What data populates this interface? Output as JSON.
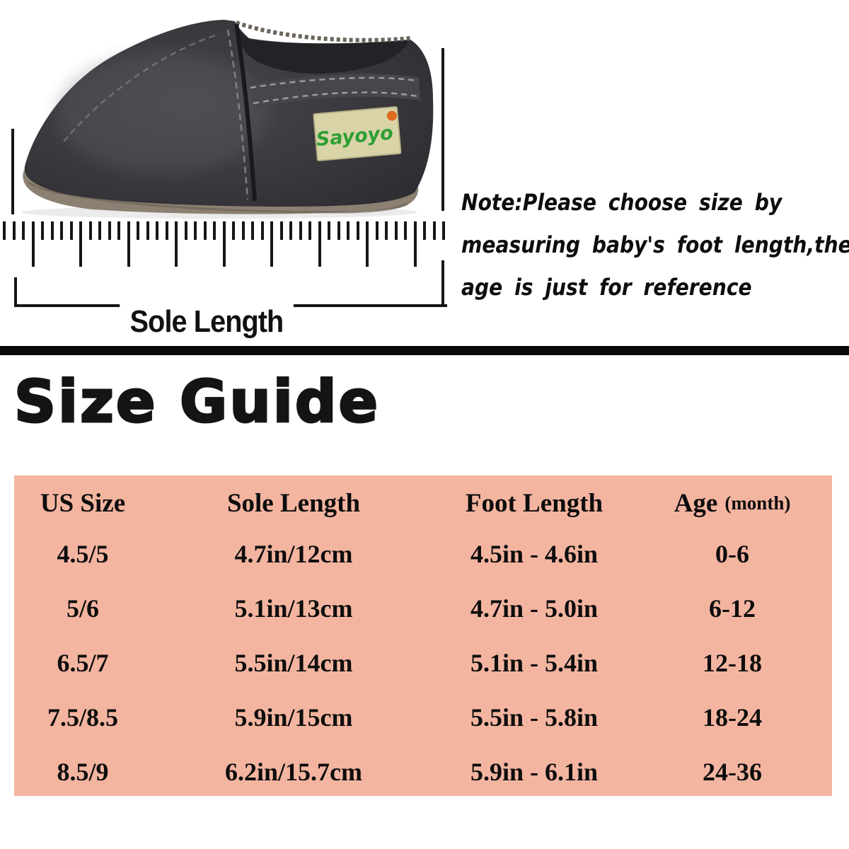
{
  "hero": {
    "brand_tag": "Sayoyo",
    "sole_length_label": "Sole Length",
    "note_line1": "Note:Please choose size by",
    "note_line2": "measuring baby's foot length,the",
    "note_line3": "age is just for reference"
  },
  "size_guide": {
    "title": "Size Guide",
    "headers": [
      {
        "label": "US Size"
      },
      {
        "label": "Sole Length"
      },
      {
        "label": "Foot Length"
      },
      {
        "label": "Age",
        "sub": "(month)"
      }
    ],
    "rows": [
      [
        "4.5/5",
        "4.7in/12cm",
        "4.5in - 4.6in",
        "0-6"
      ],
      [
        "5/6",
        "5.1in/13cm",
        "4.7in - 5.0in",
        "6-12"
      ],
      [
        "6.5/7",
        "5.5in/14cm",
        "5.1in - 5.4in",
        "12-18"
      ],
      [
        "7.5/8.5",
        "5.9in/15cm",
        "5.5in - 5.8in",
        "18-24"
      ],
      [
        "8.5/9",
        "6.2in/15.7cm",
        "5.9in - 6.1in",
        "24-36"
      ]
    ]
  },
  "colors": {
    "table_background": "#f4b5a0",
    "text": "#0d0d0d",
    "divider": "#0b0b0b",
    "shoe_body": "#3a393e",
    "shoe_sole": "#8c8072",
    "tag_background": "#d9d4a8",
    "tag_text_green": "#2d9e33",
    "tag_dot_orange": "#dd6a1e"
  }
}
